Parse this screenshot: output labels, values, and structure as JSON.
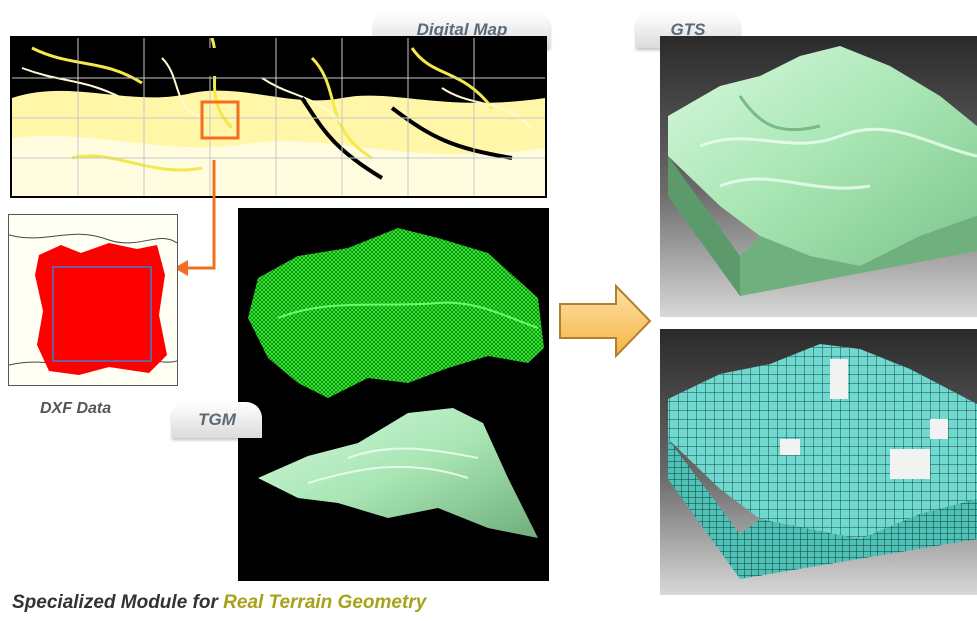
{
  "labels": {
    "digital_map": "Digital Map",
    "gts": "GTS",
    "tgm": "TGM",
    "dxf": "DXF Data"
  },
  "footer": {
    "prefix": "Specialized Module for ",
    "highlight": "Real Terrain Geometry"
  },
  "colors": {
    "map_lines": "#f5e84a",
    "selection_box": "#f07020",
    "dxf_region": "#ff0000",
    "wireframe": "#22dd22",
    "terrain_solid": "#a8e6b4",
    "terrain_mesh": "#6fd9cf",
    "arrow": "#f8c46a",
    "highlight_text": "#a8a21a"
  }
}
